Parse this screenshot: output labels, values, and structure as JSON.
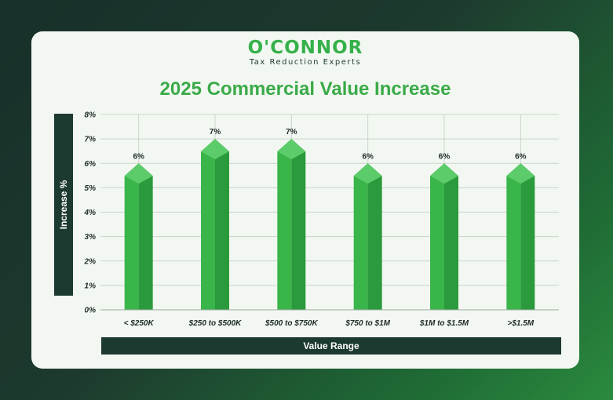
{
  "logo": {
    "brand": "O'CONNOR",
    "tagline": "Tax Reduction Experts"
  },
  "colors": {
    "bar_front": "#3ab54a",
    "bar_side": "#2a9a3c",
    "bar_top": "#5ccc6a",
    "title": "#3aaa48",
    "label_box": "#1d3a30"
  },
  "chart_data": {
    "type": "bar",
    "title": "2025 Commercial Value Increase",
    "xlabel": "Value Range",
    "ylabel": "Increase %",
    "categories": [
      "< $250K",
      "$250 to $500K",
      "$500 to $750K",
      "$750 to $1M",
      "$1M to $1.5M",
      ">$1.5M"
    ],
    "values": [
      6,
      7,
      7,
      6,
      6,
      6
    ],
    "data_labels": [
      "6%",
      "7%",
      "7%",
      "6%",
      "6%",
      "6%"
    ],
    "ylim": [
      0,
      8
    ],
    "yticks": [
      "0%",
      "1%",
      "2%",
      "3%",
      "4%",
      "5%",
      "6%",
      "7%",
      "8%"
    ],
    "grid": true,
    "legend": "none"
  }
}
